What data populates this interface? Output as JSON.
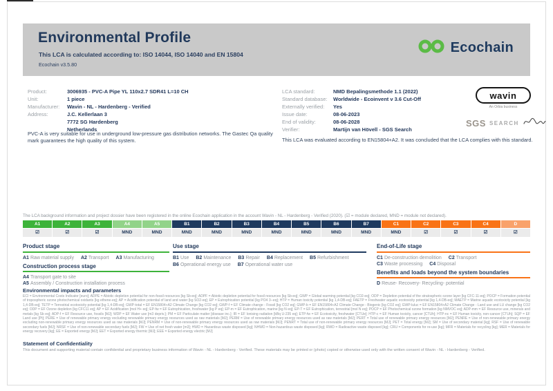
{
  "page": {
    "title": "Environmental Profile",
    "subtitle": "This LCA is calculated according to: ISO 14044, ISO 14040 and EN 15804",
    "version": "Ecochain v3.5.80",
    "brand": "Ecochain"
  },
  "colors": {
    "ecochain_green": "#5bbb46",
    "stage_green": "#3db33a",
    "stage_light_green": "#92d389",
    "stage_navy": "#1e3a5f",
    "stage_orange": "#f97316",
    "stage_light_orange": "#f9a26b",
    "header_band_gray": "#c9c9c9",
    "text_navy": "#22395b"
  },
  "product_info": {
    "rows": [
      {
        "label": "Product:",
        "value": "3006935 - PVC-A Pipe YL 110x2.7 SDR41 L=10 CH"
      },
      {
        "label": "Unit:",
        "value": "1 piece"
      },
      {
        "label": "Manufacturer:",
        "value": "Wavin - NL - Hardenberg - Verified"
      },
      {
        "label": "Address:",
        "value": "J.C. Kellerlaan 3\n7772 SG Hardenberg\nNetherlands"
      }
    ],
    "description": "PVC-A is very suitable for use in underground low-pressure gas distribution networks. The Gastec Qa quality mark guarantees the high quality of this system."
  },
  "lca_info": {
    "rows": [
      {
        "label": "LCA standard:",
        "value": "NMD Bepalingsmethode 1.1 (2022)"
      },
      {
        "label": "Standard database:",
        "value": "Worldwide - Ecoinvent v 3.6 Cut-Off"
      },
      {
        "label": "Externally verified:",
        "value": "Yes"
      },
      {
        "label": "Issue date:",
        "value": "08-06-2023"
      },
      {
        "label": "End of validity:",
        "value": "08-06-2028"
      },
      {
        "label": "Verifier:",
        "value": "Martijn van Hövell - SGS Search"
      }
    ],
    "evaluation": "This LCA was evaluated according to EN15804+A2. It was concluded that the LCA complies with this standard.",
    "wavin_logo": "wavin",
    "wavin_tagline": "An Orbia business",
    "sgs_logo": "SGS",
    "sgs_search": "SEARCH"
  },
  "registration_note": "The LCA background information and project dossier have been registered in the online Ecochain application in the account Wavin - NL - Hardenberg - Verified (2020). (☑ = module declared, MND = module not declared).",
  "modules": [
    {
      "code": "A1",
      "status": "☑",
      "group": "g-a"
    },
    {
      "code": "A2",
      "status": "☑",
      "group": "g-a"
    },
    {
      "code": "A3",
      "status": "☑",
      "group": "g-a"
    },
    {
      "code": "A4",
      "status": "MND",
      "group": "g-a2"
    },
    {
      "code": "A5",
      "status": "MND",
      "group": "g-a2"
    },
    {
      "code": "B1",
      "status": "MND",
      "group": "g-b"
    },
    {
      "code": "B2",
      "status": "MND",
      "group": "g-b"
    },
    {
      "code": "B3",
      "status": "MND",
      "group": "g-b"
    },
    {
      "code": "B4",
      "status": "MND",
      "group": "g-b"
    },
    {
      "code": "B5",
      "status": "MND",
      "group": "g-b"
    },
    {
      "code": "B6",
      "status": "MND",
      "group": "g-b"
    },
    {
      "code": "B7",
      "status": "MND",
      "group": "g-b"
    },
    {
      "code": "C1",
      "status": "MND",
      "group": "g-c"
    },
    {
      "code": "C2",
      "status": "☑",
      "group": "g-c"
    },
    {
      "code": "C3",
      "status": "☑",
      "group": "g-c"
    },
    {
      "code": "C4",
      "status": "☑",
      "group": "g-c"
    },
    {
      "code": "D",
      "status": "☑",
      "group": "g-d"
    }
  ],
  "stages": {
    "product": {
      "heading": "Product stage",
      "items": [
        {
          "code": "A1",
          "label": "Raw material supply"
        },
        {
          "code": "A2",
          "label": "Transport"
        },
        {
          "code": "A3",
          "label": "Manufacturing"
        }
      ]
    },
    "construction": {
      "heading": "Construction process stage",
      "items": [
        {
          "code": "A4",
          "label": "Transport gate to site"
        },
        {
          "code": "A5",
          "label": "Assembly / Construction installation process"
        }
      ]
    },
    "use": {
      "heading": "Use stage",
      "items": [
        {
          "code": "B1",
          "label": "Use"
        },
        {
          "code": "B2",
          "label": "Maintenance"
        },
        {
          "code": "B3",
          "label": "Repair"
        },
        {
          "code": "B4",
          "label": "Replacement"
        },
        {
          "code": "B5",
          "label": "Refurbishment"
        },
        {
          "code": "B6",
          "label": "Operational energy use"
        },
        {
          "code": "B7",
          "label": "Operational water use"
        }
      ]
    },
    "end_of_life": {
      "heading": "End-of-Life stage",
      "items": [
        {
          "code": "C1",
          "label": "De-construction demolition"
        },
        {
          "code": "C2",
          "label": "Transport"
        },
        {
          "code": "C3",
          "label": "Waste processing"
        },
        {
          "code": "C4",
          "label": "Disposal"
        }
      ]
    },
    "benefits": {
      "heading": "Benefits and loads beyond the system boundaries",
      "items": [
        {
          "code": "D",
          "label": "Reuse- Recovery- Recycling- potential"
        }
      ]
    }
  },
  "impacts": {
    "heading": "Environmental impacts and parameters",
    "legend": "ECI = Environmental Costs Indicator [euro]; ADPE = Abiotic depletion potential for non-fossil resources [kg Sb-eq]; ADPF = Abiotic depletion potential for fossil resources [kg Sb-eq]; GWP = Global warming potential [kg CO2-eq]; ODP = Depletion potential of the stratospheric ozone layer [kg CFC-11-eq]; POCP = Formation potential of tropospheric ozone photochemical oxidants [kg ethene-eq]; AP = Acidification potential of land and water [kg SO2-eq]; EP = Eutrophication potential [kg PO4 3--eq]; HTP = Human toxicity potential [kg 1,4-DB-eq]; FAETP = Freshwater aquatic ecotoxicity potential [kg 1,4-DB-eq]; MAETP = Marine aquatic ecotoxicity potential [kg 1,4-DB-eq]; TETP = Terrestrial ecotoxicity potential [kg 1,4-DB-eq]; GWP-total = EF EN15804+A2 Climate Change [kg CO2 eq]; GWP-f = EF Climate change - Fossil [kg CO2 eq]; GWP-b = EF EN15804+A2 Climate Change - Biogenic [kg CO2 eq]; GWP-luluc = EF EN15804+A2 Climate Change - Land use and LU change [kg CO2 eq]; ODP = EF Ozone depletion [kg CFC11 eq]; AP = EF Acidification [mol H+ eq]; EP-fw = EF Eutrophication, freshwater [kg P eq]; EP-m = EF Eutrophication, marine [kg N eq]; EP-T = EF Eutrophication, terrestrial [mol N eq]; POCP = EF Photochemical ozone formation [kg NMVOC eq]; ADP-mm = EF Resource use, minerals and metals [kg Sb eq]; ADP-f = EF Resource use, fossils [MJ]; WDP = EF Water use [m3 depriv.]; PM = EF Particulate matter [disease inc.]; IR = EF Ionising radiation [kBq U-235 eq]; ETP-fw = EF Ecotoxicity, freshwater [CTUe]; HTP-c = EF Human toxicity, cancer [CTUh]; HTP-nc = EF Human toxicity, non-cancer [CTUh]; SQP = EF Land use [Pt]; PERE = Use of renewable primary energy excluding renewable primary energy resources used as raw materials [MJ]; PERM = Use of renewable primary energy resources used as raw materials [MJ]; PERT = Total use of renewable primary energy resources [MJ]; PENRE = Use of non-renewable primary energy excluding non-renewable primary energy resources used as raw materials [MJ]; PENRM = Use of non-renewable primary energy resources used as raw materials [MJ]; PENRT = Total use of non-renewable primary energy resources [MJ]; PET = Total energy [MJ]; SM = Use of secondary material [kg]; RSF = Use of renewable secondary fuels [MJ]; NRSF = Use of non-renewable secondary fuels [MJ]; FW = Use of net fresh water [m3]; HWD = Hazardous waste disposed [kg]; NHWD = Non-hazardous waste disposed [kg]; RWD = Radioactive waste disposed [kg]; CRU = Components for re-use [kg]; MFR = Materials for recycling [kg]; MER = Materials for energy recovery [kg]; EE = Exported energy [MJ]; EET = Exported energy thermic [MJ]; EEE = Exported energy electric [MJ]"
  },
  "confidentiality": {
    "heading": "Statement of Confidentiality",
    "text": "This document and supporting material contain confidential and proprietary business information of Wavin - NL - Hardenberg - Verified. These materials may be printed or (photo) copied or otherwise used only with the written consent of Wavin - NL - Hardenberg - Verified."
  }
}
